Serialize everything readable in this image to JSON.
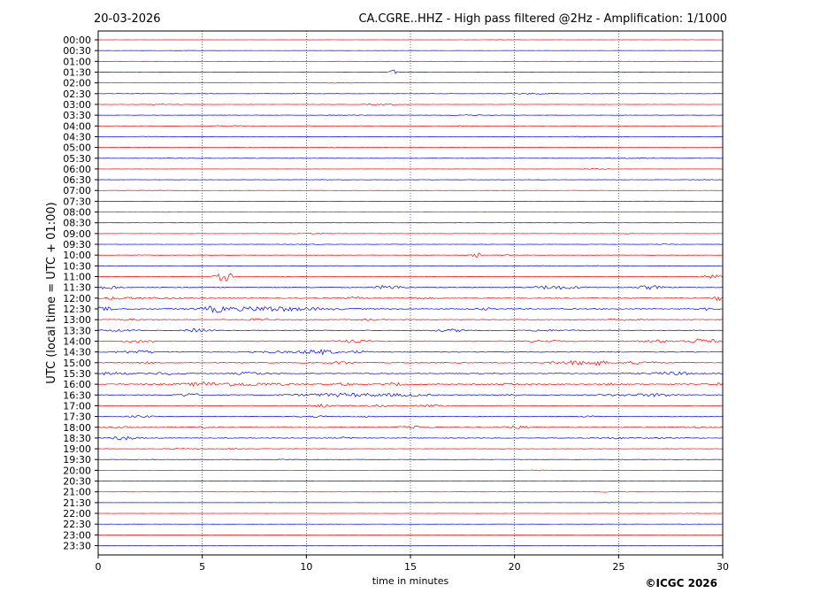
{
  "header": {
    "date": "20-03-2026",
    "title": "CA.CGRE..HHZ - High pass filtered @2Hz - Amplification: 1/1000"
  },
  "footer": {
    "copyright": "©ICGC 2026"
  },
  "chart_data": {
    "type": "line",
    "subtype": "helicorder",
    "ylabel": "UTC (local time = UTC + 01:00)",
    "xlabel": "time in minutes",
    "xlim": [
      0,
      30
    ],
    "x_ticks": [
      0,
      5,
      10,
      15,
      20,
      25,
      30
    ],
    "grid": {
      "vertical_dotted": true,
      "at_minutes": [
        5,
        10,
        15,
        20,
        25
      ]
    },
    "trace_colors": [
      "#ff0000",
      "#0000ff"
    ],
    "row_labels": [
      "00:00",
      "00:30",
      "01:00",
      "01:30",
      "02:00",
      "02:30",
      "03:00",
      "03:30",
      "04:00",
      "04:30",
      "05:00",
      "05:30",
      "06:00",
      "06:30",
      "07:00",
      "07:30",
      "08:00",
      "08:30",
      "09:00",
      "09:30",
      "10:00",
      "10:30",
      "11:00",
      "11:30",
      "12:00",
      "12:30",
      "13:00",
      "13:30",
      "14:00",
      "14:30",
      "15:00",
      "15:30",
      "16:00",
      "16:30",
      "17:00",
      "17:30",
      "18:00",
      "18:30",
      "19:00",
      "19:30",
      "20:00",
      "20:30",
      "21:00",
      "21:30",
      "22:00",
      "22:30",
      "23:00",
      "23:30"
    ],
    "noise_level": [
      0.2,
      0.2,
      0.3,
      0.3,
      0.3,
      0.5,
      0.4,
      0.4,
      0.4,
      0.5,
      0.5,
      0.5,
      0.3,
      0.5,
      0.3,
      0.3,
      0.3,
      0.3,
      0.4,
      0.4,
      0.5,
      0.4,
      0.5,
      1.2,
      1.2,
      1.5,
      1.0,
      1.0,
      1.2,
      1.2,
      1.3,
      1.2,
      1.5,
      1.3,
      1.0,
      0.9,
      1.0,
      1.0,
      0.6,
      0.6,
      0.3,
      0.3,
      0.3,
      0.2,
      0.2,
      0.2,
      0.2,
      0.15
    ],
    "events": [
      {
        "row": "01:30",
        "minute": 14.2,
        "amplitude": 5.5,
        "duration_min": 0.25
      },
      {
        "row": "10:00",
        "minute": 18.2,
        "amplitude": 2.5,
        "duration_min": 0.5
      },
      {
        "row": "11:00",
        "minute": 6.1,
        "amplitude": 5.0,
        "duration_min": 0.8
      },
      {
        "row": "11:00",
        "minute": 29.5,
        "amplitude": 2.0,
        "duration_min": 1.0
      },
      {
        "row": "11:30",
        "minute": 0.5,
        "amplitude": 2.0,
        "duration_min": 1.0
      },
      {
        "row": "11:30",
        "minute": 26.5,
        "amplitude": 2.0,
        "duration_min": 1.2
      },
      {
        "row": "12:00",
        "minute": 29.8,
        "amplitude": 2.5,
        "duration_min": 0.5
      },
      {
        "row": "12:30",
        "minute": 8.0,
        "amplitude": 2.0,
        "duration_min": 6.0
      },
      {
        "row": "13:30",
        "minute": 4.8,
        "amplitude": 2.0,
        "duration_min": 1.2
      },
      {
        "row": "14:00",
        "minute": 29.0,
        "amplitude": 2.0,
        "duration_min": 1.5
      },
      {
        "row": "14:30",
        "minute": 10.3,
        "amplitude": 2.0,
        "duration_min": 1.5
      },
      {
        "row": "15:00",
        "minute": 23.5,
        "amplitude": 2.0,
        "duration_min": 1.5
      },
      {
        "row": "16:00",
        "minute": 6.5,
        "amplitude": 1.8,
        "duration_min": 5.0
      },
      {
        "row": "16:30",
        "minute": 12.0,
        "amplitude": 1.8,
        "duration_min": 5.0
      },
      {
        "row": "18:00",
        "minute": 20.0,
        "amplitude": 1.5,
        "duration_min": 1.5
      },
      {
        "row": "18:30",
        "minute": 1.2,
        "amplitude": 1.5,
        "duration_min": 1.0
      }
    ]
  }
}
